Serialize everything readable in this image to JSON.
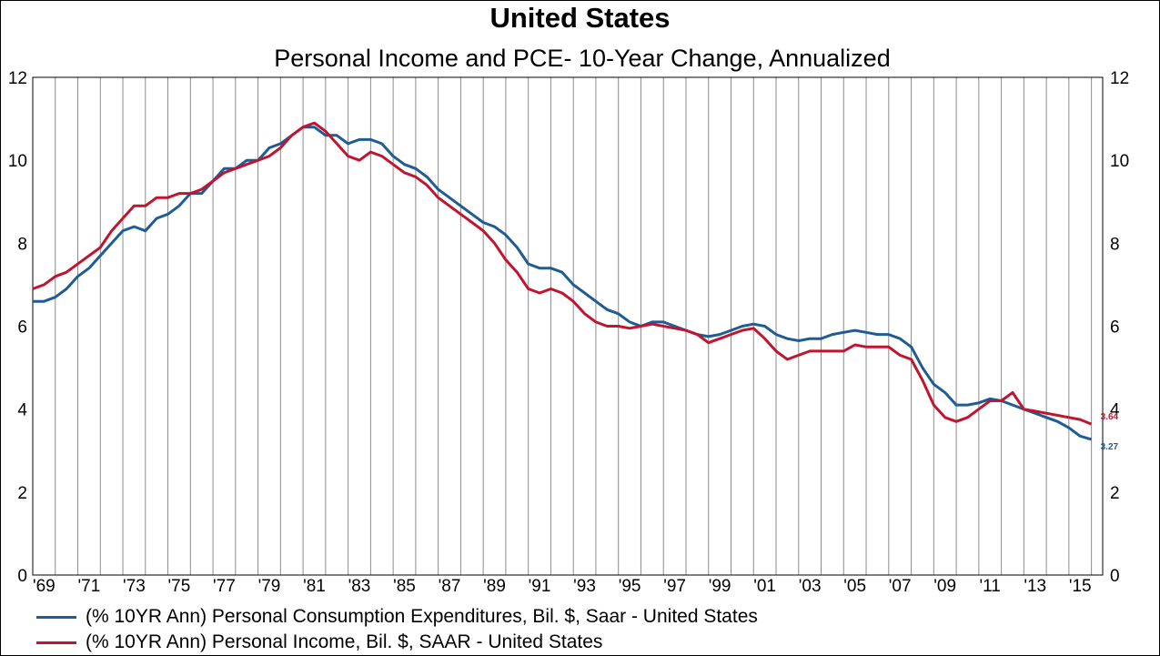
{
  "chart_data": {
    "type": "line",
    "title": "United States",
    "subtitle": "Personal Income and PCE- 10-Year Change, Annualized",
    "x_tick_labels": [
      "'69",
      "'71",
      "'73",
      "'75",
      "'77",
      "'79",
      "'81",
      "'83",
      "'85",
      "'87",
      "'89",
      "'91",
      "'93",
      "'95",
      "'97",
      "'99",
      "'01",
      "'03",
      "'05",
      "'07",
      "'09",
      "'11",
      "'13",
      "'15"
    ],
    "xlim": [
      1969,
      2016.5
    ],
    "ylim": [
      0,
      12
    ],
    "y_ticks": [
      0,
      2,
      4,
      6,
      8,
      10,
      12
    ],
    "y_tick_labels": [
      "0",
      "2",
      "4",
      "6",
      "8",
      "10",
      "12"
    ],
    "dual_y_axis": true,
    "grid": {
      "vertical": true,
      "horizontal": false
    },
    "legend_position": "bottom-left",
    "series": [
      {
        "name": "(% 10YR Ann) Personal Consumption Expenditures, Bil. $, Saar - United States",
        "color": "#1f5b94",
        "end_label": "3.27",
        "points": [
          [
            1969.0,
            6.6
          ],
          [
            1969.5,
            6.6
          ],
          [
            1970.0,
            6.7
          ],
          [
            1970.5,
            6.9
          ],
          [
            1971.0,
            7.2
          ],
          [
            1971.5,
            7.4
          ],
          [
            1972.0,
            7.7
          ],
          [
            1972.5,
            8.0
          ],
          [
            1973.0,
            8.3
          ],
          [
            1973.5,
            8.4
          ],
          [
            1974.0,
            8.3
          ],
          [
            1974.5,
            8.6
          ],
          [
            1975.0,
            8.7
          ],
          [
            1975.5,
            8.9
          ],
          [
            1976.0,
            9.2
          ],
          [
            1976.5,
            9.2
          ],
          [
            1977.0,
            9.5
          ],
          [
            1977.5,
            9.8
          ],
          [
            1978.0,
            9.8
          ],
          [
            1978.5,
            10.0
          ],
          [
            1979.0,
            10.0
          ],
          [
            1979.5,
            10.3
          ],
          [
            1980.0,
            10.4
          ],
          [
            1980.5,
            10.6
          ],
          [
            1981.0,
            10.8
          ],
          [
            1981.5,
            10.8
          ],
          [
            1982.0,
            10.6
          ],
          [
            1982.5,
            10.6
          ],
          [
            1983.0,
            10.4
          ],
          [
            1983.5,
            10.5
          ],
          [
            1984.0,
            10.5
          ],
          [
            1984.5,
            10.4
          ],
          [
            1985.0,
            10.1
          ],
          [
            1985.5,
            9.9
          ],
          [
            1986.0,
            9.8
          ],
          [
            1986.5,
            9.6
          ],
          [
            1987.0,
            9.3
          ],
          [
            1987.5,
            9.1
          ],
          [
            1988.0,
            8.9
          ],
          [
            1988.5,
            8.7
          ],
          [
            1989.0,
            8.5
          ],
          [
            1989.5,
            8.4
          ],
          [
            1990.0,
            8.2
          ],
          [
            1990.5,
            7.9
          ],
          [
            1991.0,
            7.5
          ],
          [
            1991.5,
            7.4
          ],
          [
            1992.0,
            7.4
          ],
          [
            1992.5,
            7.3
          ],
          [
            1993.0,
            7.0
          ],
          [
            1993.5,
            6.8
          ],
          [
            1994.0,
            6.6
          ],
          [
            1994.5,
            6.4
          ],
          [
            1995.0,
            6.3
          ],
          [
            1995.5,
            6.1
          ],
          [
            1996.0,
            6.0
          ],
          [
            1996.5,
            6.1
          ],
          [
            1997.0,
            6.1
          ],
          [
            1997.5,
            6.0
          ],
          [
            1998.0,
            5.9
          ],
          [
            1998.5,
            5.8
          ],
          [
            1999.0,
            5.75
          ],
          [
            1999.5,
            5.8
          ],
          [
            2000.0,
            5.9
          ],
          [
            2000.5,
            6.0
          ],
          [
            2001.0,
            6.05
          ],
          [
            2001.5,
            6.0
          ],
          [
            2002.0,
            5.8
          ],
          [
            2002.5,
            5.7
          ],
          [
            2003.0,
            5.65
          ],
          [
            2003.5,
            5.7
          ],
          [
            2004.0,
            5.7
          ],
          [
            2004.5,
            5.8
          ],
          [
            2005.0,
            5.85
          ],
          [
            2005.5,
            5.9
          ],
          [
            2006.0,
            5.85
          ],
          [
            2006.5,
            5.8
          ],
          [
            2007.0,
            5.8
          ],
          [
            2007.5,
            5.7
          ],
          [
            2008.0,
            5.5
          ],
          [
            2008.5,
            5.0
          ],
          [
            2009.0,
            4.6
          ],
          [
            2009.5,
            4.4
          ],
          [
            2010.0,
            4.1
          ],
          [
            2010.5,
            4.1
          ],
          [
            2011.0,
            4.15
          ],
          [
            2011.5,
            4.25
          ],
          [
            2012.0,
            4.2
          ],
          [
            2012.5,
            4.1
          ],
          [
            2013.0,
            4.0
          ],
          [
            2013.5,
            3.9
          ],
          [
            2014.0,
            3.8
          ],
          [
            2014.5,
            3.7
          ],
          [
            2015.0,
            3.55
          ],
          [
            2015.5,
            3.35
          ],
          [
            2016.0,
            3.27
          ]
        ]
      },
      {
        "name": "(% 10YR Ann) Personal Income, Bil. $, SAAR - United States",
        "color": "#c0152f",
        "end_label": "3.64",
        "points": [
          [
            1969.0,
            6.9
          ],
          [
            1969.5,
            7.0
          ],
          [
            1970.0,
            7.2
          ],
          [
            1970.5,
            7.3
          ],
          [
            1971.0,
            7.5
          ],
          [
            1971.5,
            7.7
          ],
          [
            1972.0,
            7.9
          ],
          [
            1972.5,
            8.3
          ],
          [
            1973.0,
            8.6
          ],
          [
            1973.5,
            8.9
          ],
          [
            1974.0,
            8.9
          ],
          [
            1974.5,
            9.1
          ],
          [
            1975.0,
            9.1
          ],
          [
            1975.5,
            9.2
          ],
          [
            1976.0,
            9.2
          ],
          [
            1976.5,
            9.3
          ],
          [
            1977.0,
            9.5
          ],
          [
            1977.5,
            9.7
          ],
          [
            1978.0,
            9.8
          ],
          [
            1978.5,
            9.9
          ],
          [
            1979.0,
            10.0
          ],
          [
            1979.5,
            10.1
          ],
          [
            1980.0,
            10.3
          ],
          [
            1980.5,
            10.6
          ],
          [
            1981.0,
            10.8
          ],
          [
            1981.5,
            10.9
          ],
          [
            1982.0,
            10.7
          ],
          [
            1982.5,
            10.4
          ],
          [
            1983.0,
            10.1
          ],
          [
            1983.5,
            10.0
          ],
          [
            1984.0,
            10.2
          ],
          [
            1984.5,
            10.1
          ],
          [
            1985.0,
            9.9
          ],
          [
            1985.5,
            9.7
          ],
          [
            1986.0,
            9.6
          ],
          [
            1986.5,
            9.4
          ],
          [
            1987.0,
            9.1
          ],
          [
            1987.5,
            8.9
          ],
          [
            1988.0,
            8.7
          ],
          [
            1988.5,
            8.5
          ],
          [
            1989.0,
            8.3
          ],
          [
            1989.5,
            8.0
          ],
          [
            1990.0,
            7.6
          ],
          [
            1990.5,
            7.3
          ],
          [
            1991.0,
            6.9
          ],
          [
            1991.5,
            6.8
          ],
          [
            1992.0,
            6.9
          ],
          [
            1992.5,
            6.8
          ],
          [
            1993.0,
            6.6
          ],
          [
            1993.5,
            6.3
          ],
          [
            1994.0,
            6.1
          ],
          [
            1994.5,
            6.0
          ],
          [
            1995.0,
            6.0
          ],
          [
            1995.5,
            5.95
          ],
          [
            1996.0,
            6.0
          ],
          [
            1996.5,
            6.05
          ],
          [
            1997.0,
            6.0
          ],
          [
            1997.5,
            5.95
          ],
          [
            1998.0,
            5.9
          ],
          [
            1998.5,
            5.8
          ],
          [
            1999.0,
            5.6
          ],
          [
            1999.5,
            5.7
          ],
          [
            2000.0,
            5.8
          ],
          [
            2000.5,
            5.9
          ],
          [
            2001.0,
            5.95
          ],
          [
            2001.5,
            5.7
          ],
          [
            2002.0,
            5.4
          ],
          [
            2002.5,
            5.2
          ],
          [
            2003.0,
            5.3
          ],
          [
            2003.5,
            5.4
          ],
          [
            2004.0,
            5.4
          ],
          [
            2004.5,
            5.4
          ],
          [
            2005.0,
            5.4
          ],
          [
            2005.5,
            5.55
          ],
          [
            2006.0,
            5.5
          ],
          [
            2006.5,
            5.5
          ],
          [
            2007.0,
            5.5
          ],
          [
            2007.5,
            5.3
          ],
          [
            2008.0,
            5.2
          ],
          [
            2008.5,
            4.7
          ],
          [
            2009.0,
            4.1
          ],
          [
            2009.5,
            3.8
          ],
          [
            2010.0,
            3.7
          ],
          [
            2010.5,
            3.8
          ],
          [
            2011.0,
            4.0
          ],
          [
            2011.5,
            4.2
          ],
          [
            2012.0,
            4.2
          ],
          [
            2012.5,
            4.4
          ],
          [
            2013.0,
            4.0
          ],
          [
            2013.5,
            3.95
          ],
          [
            2014.0,
            3.9
          ],
          [
            2014.5,
            3.85
          ],
          [
            2015.0,
            3.8
          ],
          [
            2015.5,
            3.75
          ],
          [
            2016.0,
            3.64
          ]
        ]
      }
    ]
  }
}
